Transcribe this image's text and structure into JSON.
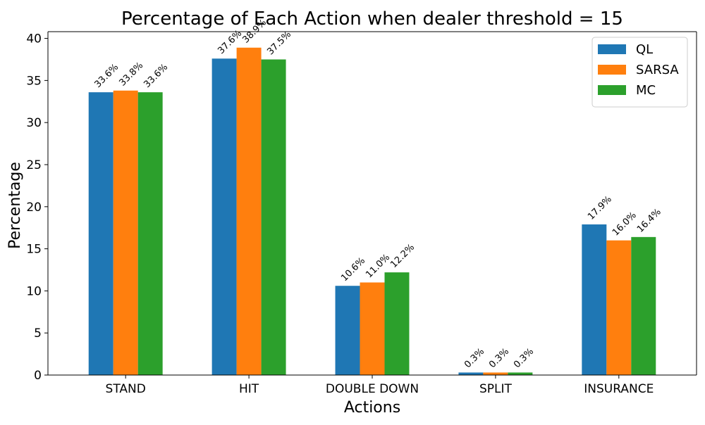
{
  "chart_data": {
    "type": "bar",
    "title": "Percentage of Each Action when dealer threshold = 15",
    "xlabel": "Actions",
    "ylabel": "Percentage",
    "categories": [
      "STAND",
      "HIT",
      "DOUBLE DOWN",
      "SPLIT",
      "INSURANCE"
    ],
    "series": [
      {
        "name": "QL",
        "color": "#1f77b4",
        "values": [
          33.6,
          37.6,
          10.6,
          0.3,
          17.9
        ],
        "labels": [
          "33.6%",
          "37.6%",
          "10.6%",
          "0.3%",
          "17.9%"
        ]
      },
      {
        "name": "SARSA",
        "color": "#ff7f0e",
        "values": [
          33.8,
          38.9,
          11.0,
          0.3,
          16.0
        ],
        "labels": [
          "33.8%",
          "38.9%",
          "11.0%",
          "0.3%",
          "16.0%"
        ]
      },
      {
        "name": "MC",
        "color": "#2ca02c",
        "values": [
          33.6,
          37.5,
          12.2,
          0.3,
          16.4
        ],
        "labels": [
          "33.6%",
          "37.5%",
          "12.2%",
          "0.3%",
          "16.4%"
        ]
      }
    ],
    "ylim": [
      0,
      40.8
    ],
    "yticks": [
      0,
      5,
      10,
      15,
      20,
      25,
      30,
      35,
      40
    ],
    "grid": false,
    "legend_position": "top-right"
  }
}
